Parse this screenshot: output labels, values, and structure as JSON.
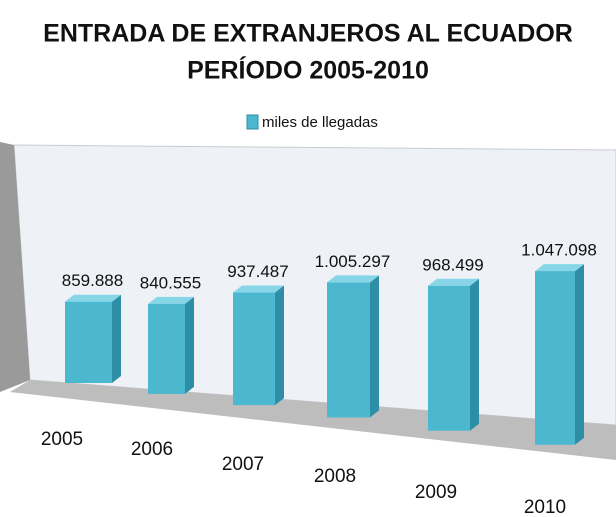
{
  "chart_data": {
    "type": "bar3d",
    "title": [
      "ENTRADA DE EXTRANJEROS AL ECUADOR",
      "PERÍODO 2005-2010"
    ],
    "categories": [
      "2005",
      "2006",
      "2007",
      "2008",
      "2009",
      "2010"
    ],
    "series": [
      {
        "name": "miles de llegadas",
        "color": "#4bb8d0",
        "values": [
          859888,
          840555,
          937487,
          1005297,
          968499,
          1047098
        ],
        "value_labels": [
          "859.888",
          "840.555",
          "937.487",
          "1.005.297",
          "968.499",
          "1.047.098"
        ]
      }
    ],
    "legend": "top"
  }
}
